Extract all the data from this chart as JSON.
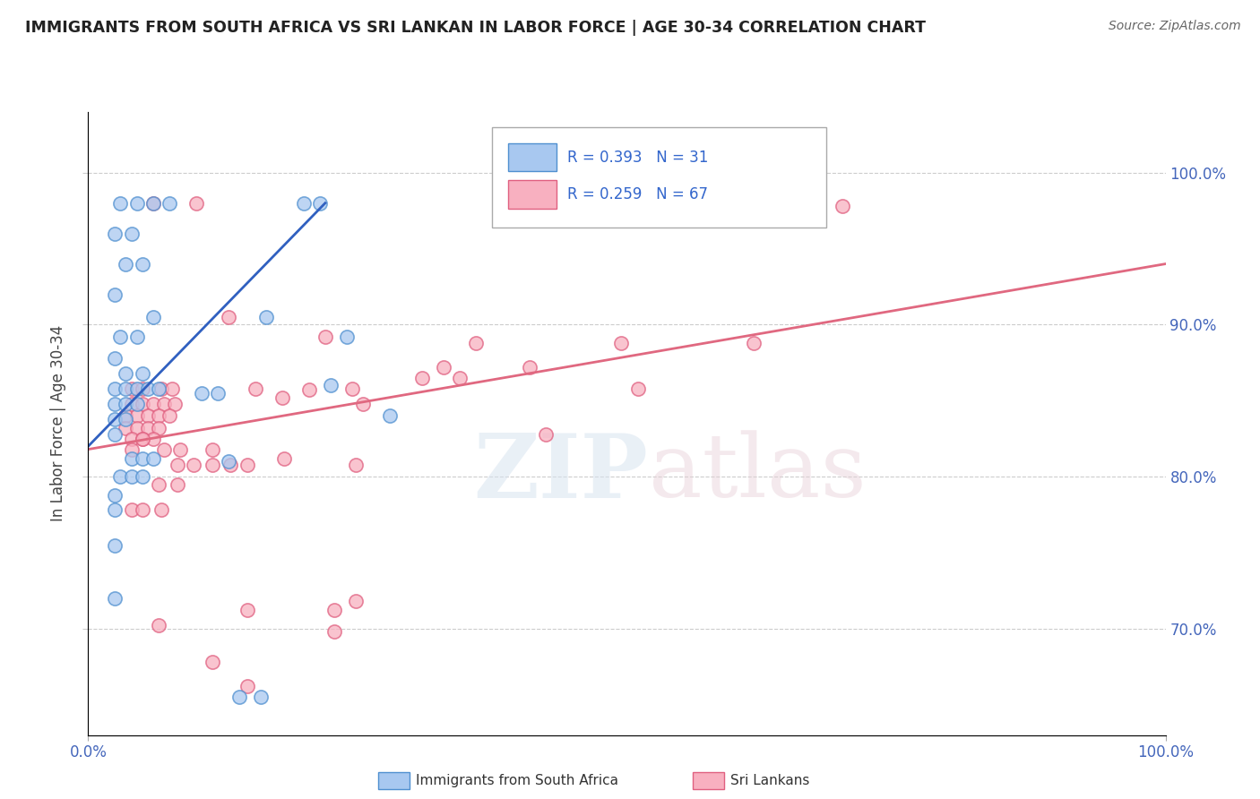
{
  "title": "IMMIGRANTS FROM SOUTH AFRICA VS SRI LANKAN IN LABOR FORCE | AGE 30-34 CORRELATION CHART",
  "source": "Source: ZipAtlas.com",
  "ylabel": "In Labor Force | Age 30-34",
  "xlim": [
    0.0,
    1.0
  ],
  "ylim": [
    0.63,
    1.04
  ],
  "ytick_positions": [
    0.7,
    0.8,
    0.9,
    1.0
  ],
  "ytick_labels_right": [
    "70.0%",
    "80.0%",
    "90.0%",
    "100.0%"
  ],
  "xtick_positions": [
    0.0,
    1.0
  ],
  "xtick_labels": [
    "0.0%",
    "100.0%"
  ],
  "legend_label1": "Immigrants from South Africa",
  "legend_label2": "Sri Lankans",
  "blue_fill": "#a8c8f0",
  "blue_edge": "#5090d0",
  "pink_fill": "#f8b0c0",
  "pink_edge": "#e06080",
  "blue_line": "#3060c0",
  "pink_line": "#e06880",
  "watermark_zip": "ZIP",
  "watermark_atlas": "atlas",
  "blue_dots": [
    [
      0.03,
      0.98
    ],
    [
      0.045,
      0.98
    ],
    [
      0.06,
      0.98
    ],
    [
      0.075,
      0.98
    ],
    [
      0.025,
      0.96
    ],
    [
      0.04,
      0.96
    ],
    [
      0.035,
      0.94
    ],
    [
      0.05,
      0.94
    ],
    [
      0.025,
      0.92
    ],
    [
      0.06,
      0.905
    ],
    [
      0.03,
      0.892
    ],
    [
      0.045,
      0.892
    ],
    [
      0.025,
      0.878
    ],
    [
      0.035,
      0.868
    ],
    [
      0.05,
      0.868
    ],
    [
      0.025,
      0.858
    ],
    [
      0.035,
      0.858
    ],
    [
      0.045,
      0.858
    ],
    [
      0.055,
      0.858
    ],
    [
      0.065,
      0.858
    ],
    [
      0.025,
      0.848
    ],
    [
      0.035,
      0.848
    ],
    [
      0.045,
      0.848
    ],
    [
      0.025,
      0.838
    ],
    [
      0.035,
      0.838
    ],
    [
      0.025,
      0.828
    ],
    [
      0.04,
      0.812
    ],
    [
      0.05,
      0.812
    ],
    [
      0.06,
      0.812
    ],
    [
      0.03,
      0.8
    ],
    [
      0.04,
      0.8
    ],
    [
      0.05,
      0.8
    ],
    [
      0.025,
      0.788
    ],
    [
      0.025,
      0.778
    ],
    [
      0.025,
      0.755
    ],
    [
      0.13,
      0.81
    ],
    [
      0.14,
      0.655
    ],
    [
      0.16,
      0.655
    ],
    [
      0.025,
      0.72
    ],
    [
      0.2,
      0.98
    ],
    [
      0.215,
      0.98
    ],
    [
      0.165,
      0.905
    ],
    [
      0.24,
      0.892
    ],
    [
      0.225,
      0.86
    ],
    [
      0.105,
      0.855
    ],
    [
      0.12,
      0.855
    ],
    [
      0.28,
      0.84
    ]
  ],
  "pink_dots": [
    [
      0.06,
      0.98
    ],
    [
      0.1,
      0.98
    ],
    [
      0.13,
      0.905
    ],
    [
      0.04,
      0.858
    ],
    [
      0.05,
      0.858
    ],
    [
      0.068,
      0.858
    ],
    [
      0.078,
      0.858
    ],
    [
      0.04,
      0.848
    ],
    [
      0.05,
      0.848
    ],
    [
      0.06,
      0.848
    ],
    [
      0.07,
      0.848
    ],
    [
      0.08,
      0.848
    ],
    [
      0.035,
      0.84
    ],
    [
      0.045,
      0.84
    ],
    [
      0.055,
      0.84
    ],
    [
      0.065,
      0.84
    ],
    [
      0.075,
      0.84
    ],
    [
      0.035,
      0.832
    ],
    [
      0.045,
      0.832
    ],
    [
      0.055,
      0.832
    ],
    [
      0.065,
      0.832
    ],
    [
      0.04,
      0.825
    ],
    [
      0.05,
      0.825
    ],
    [
      0.06,
      0.825
    ],
    [
      0.04,
      0.818
    ],
    [
      0.07,
      0.818
    ],
    [
      0.085,
      0.818
    ],
    [
      0.115,
      0.818
    ],
    [
      0.155,
      0.858
    ],
    [
      0.18,
      0.852
    ],
    [
      0.205,
      0.857
    ],
    [
      0.22,
      0.892
    ],
    [
      0.245,
      0.858
    ],
    [
      0.255,
      0.848
    ],
    [
      0.31,
      0.865
    ],
    [
      0.33,
      0.872
    ],
    [
      0.345,
      0.865
    ],
    [
      0.36,
      0.888
    ],
    [
      0.41,
      0.872
    ],
    [
      0.425,
      0.828
    ],
    [
      0.495,
      0.888
    ],
    [
      0.51,
      0.858
    ],
    [
      0.618,
      0.888
    ],
    [
      0.66,
      0.978
    ],
    [
      0.7,
      0.978
    ],
    [
      0.083,
      0.808
    ],
    [
      0.098,
      0.808
    ],
    [
      0.115,
      0.808
    ],
    [
      0.182,
      0.812
    ],
    [
      0.248,
      0.808
    ],
    [
      0.065,
      0.795
    ],
    [
      0.083,
      0.795
    ],
    [
      0.132,
      0.808
    ],
    [
      0.148,
      0.808
    ],
    [
      0.04,
      0.778
    ],
    [
      0.05,
      0.778
    ],
    [
      0.068,
      0.778
    ],
    [
      0.148,
      0.712
    ],
    [
      0.228,
      0.712
    ],
    [
      0.248,
      0.718
    ],
    [
      0.065,
      0.702
    ],
    [
      0.228,
      0.698
    ],
    [
      0.115,
      0.678
    ],
    [
      0.148,
      0.662
    ],
    [
      0.05,
      0.825
    ]
  ],
  "blue_trend_x": [
    0.0,
    0.22
  ],
  "blue_trend_y": [
    0.82,
    0.98
  ],
  "pink_trend_x": [
    0.0,
    1.0
  ],
  "pink_trend_y": [
    0.818,
    0.94
  ]
}
